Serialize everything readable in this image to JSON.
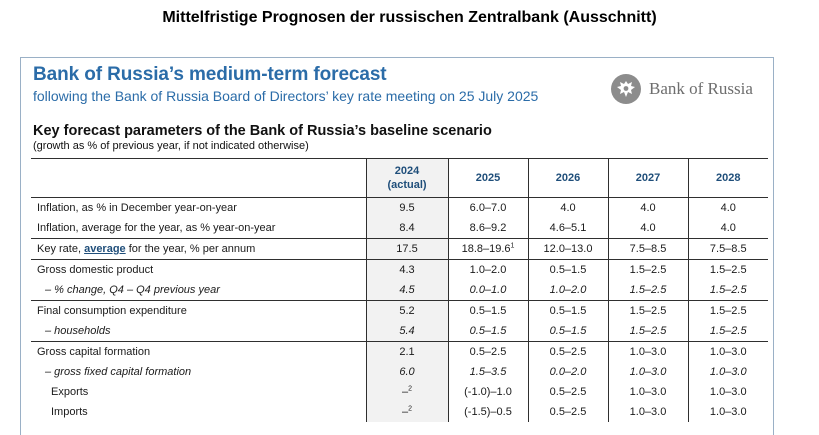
{
  "page_heading": "Mittelfristige Prognosen der russischen Zentralbank (Ausschnitt)",
  "report": {
    "title": "Bank of Russia’s medium-term forecast",
    "subtitle": "following the Bank of Russia Board of Directors’ key rate meeting on 25 July 2025",
    "logo_text": "Bank of Russia",
    "section_title": "Key forecast parameters of the Bank of Russia’s baseline scenario",
    "section_note": "(growth as % of previous year, if not indicated otherwise)"
  },
  "table": {
    "headers": {
      "c2024_line1": "2024",
      "c2024_line2": "(actual)",
      "c2025": "2025",
      "c2026": "2026",
      "c2027": "2027",
      "c2028": "2028"
    },
    "rows": [
      {
        "label": "Inflation, as % in December year-on-year",
        "v2024": "9.5",
        "v2025": "6.0–7.0",
        "v2026": "4.0",
        "v2027": "4.0",
        "v2028": "4.0"
      },
      {
        "label": "Inflation, average for the year, as % year-on-year",
        "v2024": "8.4",
        "v2025": "8.6–9.2",
        "v2026": "4.6–5.1",
        "v2027": "4.0",
        "v2028": "4.0"
      },
      {
        "label_pre": "Key rate, ",
        "label_link": "average",
        "label_post": " for the year, % per annum",
        "v2024": "17.5",
        "v2025": "18.8–19.6",
        "v2025_sup": "1",
        "v2026": "12.0–13.0",
        "v2027": "7.5–8.5",
        "v2028": "7.5–8.5"
      },
      {
        "label": "Gross domestic product",
        "v2024": "4.3",
        "v2025": "1.0–2.0",
        "v2026": "0.5–1.5",
        "v2027": "1.5–2.5",
        "v2028": "1.5–2.5"
      },
      {
        "label": "– % change, Q4 – Q4 previous year",
        "v2024": "4.5",
        "v2025": "0.0–1.0",
        "v2026": "1.0–2.0",
        "v2027": "1.5–2.5",
        "v2028": "1.5–2.5"
      },
      {
        "label": "Final consumption expenditure",
        "v2024": "5.2",
        "v2025": "0.5–1.5",
        "v2026": "0.5–1.5",
        "v2027": "1.5–2.5",
        "v2028": "1.5–2.5"
      },
      {
        "label": "– households",
        "v2024": "5.4",
        "v2025": "0.5–1.5",
        "v2026": "0.5–1.5",
        "v2027": "1.5–2.5",
        "v2028": "1.5–2.5"
      },
      {
        "label": "Gross capital formation",
        "v2024": "2.1",
        "v2025": "0.5–2.5",
        "v2026": "0.5–2.5",
        "v2027": "1.0–3.0",
        "v2028": "1.0–3.0"
      },
      {
        "label": "– gross fixed capital formation",
        "v2024": "6.0",
        "v2025": "1.5–3.5",
        "v2026": "0.0–2.0",
        "v2027": "1.0–3.0",
        "v2028": "1.0–3.0"
      },
      {
        "label": "Exports",
        "v2024": "–",
        "v2024_sup": "2",
        "v2025": "(-1.0)–1.0",
        "v2026": "0.5–2.5",
        "v2027": "1.0–3.0",
        "v2028": "1.0–3.0"
      },
      {
        "label": "Imports",
        "v2024": "–",
        "v2024_sup": "2",
        "v2025": "(-1.5)–0.5",
        "v2026": "0.5–2.5",
        "v2027": "1.0–3.0",
        "v2028": "1.0–3.0"
      }
    ]
  }
}
